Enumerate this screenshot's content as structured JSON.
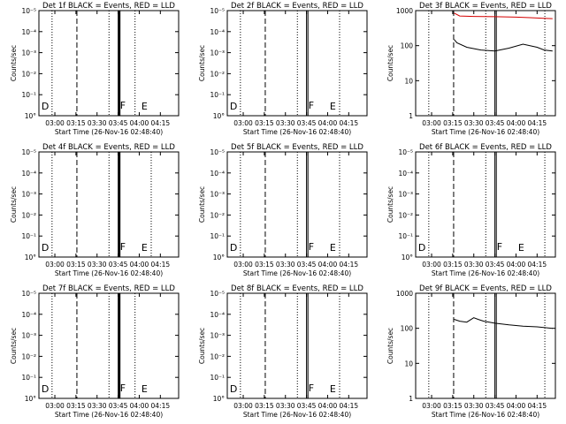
{
  "figure": {
    "background": "#ffffff",
    "axis_color": "#000000",
    "lld_color": "#d40000",
    "events_color": "#000000"
  },
  "chart_data": [
    {
      "type": "line",
      "title": "Det 1f BLACK = Events, RED = LLD",
      "ylabel": "Counts/sec",
      "xlabel": "Start Time (26-Nov-16 02:48:40)",
      "xlim": [
        "02:48:40",
        "04:28:00"
      ],
      "ylim": [
        1,
        1000
      ],
      "log_y": true,
      "yticklabels": [
        "10°",
        "10⁻¹",
        "10⁻²",
        "10⁻³",
        "10⁻⁴",
        "10⁻⁵"
      ],
      "xticklabels": [
        "03:00",
        "03:15",
        "03:30",
        "03:45",
        "04:00",
        "04:15"
      ],
      "dotted_lines": [
        "02:58:00",
        "03:38:30",
        "03:57:00"
      ],
      "dashed_lines": [
        "03:15:40"
      ],
      "solid_lines": [
        "03:45:40"
      ],
      "solid_lines_bold": true,
      "markers": [
        {
          "label": "D",
          "x": "02:50:30",
          "y": 1.5
        },
        {
          "label": "F",
          "x": "03:46:20",
          "y": 1.6
        },
        {
          "label": "E",
          "x": "04:01:30",
          "y": 1.5
        }
      ],
      "series": []
    },
    {
      "type": "line",
      "title": "Det 2f BLACK = Events, RED = LLD",
      "ylabel": "Counts/sec",
      "xlabel": "Start Time (26-Nov-16 02:48:40)",
      "xlim": [
        "02:48:40",
        "04:28:00"
      ],
      "ylim": [
        1,
        1000
      ],
      "log_y": true,
      "yticklabels": [
        "10°",
        "10⁻¹",
        "10⁻²",
        "10⁻³",
        "10⁻⁴",
        "10⁻⁵"
      ],
      "xticklabels": [
        "03:00",
        "03:15",
        "03:30",
        "03:45",
        "04:00",
        "04:15"
      ],
      "dotted_lines": [
        "02:58:00",
        "03:38:30",
        "04:08:30"
      ],
      "dashed_lines": [
        "03:15:40"
      ],
      "solid_lines": [
        "03:45:00",
        "03:46:00"
      ],
      "markers": [
        {
          "label": "D",
          "x": "02:50:30",
          "y": 1.5
        },
        {
          "label": "F",
          "x": "03:46:20",
          "y": 1.6
        },
        {
          "label": "E",
          "x": "04:01:30",
          "y": 1.5
        }
      ],
      "series": []
    },
    {
      "type": "line",
      "title": "Det 3f BLACK = Events, RED = LLD",
      "ylabel": "Counts/sec",
      "xlabel": "Start Time (26-Nov-16 02:48:40)",
      "xlim": [
        "02:48:40",
        "04:28:00"
      ],
      "ylim": [
        1,
        1000
      ],
      "log_y": true,
      "yticklabels": [
        "1",
        "10",
        "100",
        "1000"
      ],
      "xticklabels": [
        "03:00",
        "03:15",
        "03:30",
        "03:45",
        "04:00",
        "04:15"
      ],
      "dotted_lines": [
        "02:58:00",
        "03:38:30",
        "04:20:30"
      ],
      "dashed_lines": [
        "03:15:40"
      ],
      "solid_lines": [
        "03:45:00",
        "03:46:00"
      ],
      "markers": [],
      "series": [
        {
          "color": "red",
          "points": [
            [
              "03:16:00",
              850
            ],
            [
              "03:20:00",
              700
            ],
            [
              "03:30:00",
              680
            ],
            [
              "03:45:00",
              670
            ],
            [
              "04:00:00",
              650
            ],
            [
              "04:10:00",
              630
            ],
            [
              "04:20:00",
              600
            ],
            [
              "04:26:00",
              590
            ]
          ]
        },
        {
          "color": "black",
          "points": [
            [
              "03:16:00",
              150
            ],
            [
              "03:18:00",
              120
            ],
            [
              "03:25:00",
              90
            ],
            [
              "03:35:00",
              75
            ],
            [
              "03:45:00",
              70
            ],
            [
              "03:55:00",
              85
            ],
            [
              "04:05:00",
              110
            ],
            [
              "04:15:00",
              90
            ],
            [
              "04:20:00",
              75
            ],
            [
              "04:26:00",
              70
            ]
          ]
        }
      ]
    },
    {
      "type": "line",
      "title": "Det 4f BLACK = Events, RED = LLD",
      "ylabel": "Counts/sec",
      "xlabel": "Start Time (26-Nov-16 02:48:40)",
      "xlim": [
        "02:48:40",
        "04:28:00"
      ],
      "ylim": [
        1,
        1000
      ],
      "log_y": true,
      "yticklabels": [
        "10°",
        "10⁻¹",
        "10⁻²",
        "10⁻³",
        "10⁻⁴",
        "10⁻⁵"
      ],
      "xticklabels": [
        "03:00",
        "03:15",
        "03:30",
        "03:45",
        "04:00",
        "04:15"
      ],
      "dotted_lines": [
        "02:58:00",
        "03:38:30",
        "04:08:30"
      ],
      "dashed_lines": [
        "03:15:40"
      ],
      "solid_lines": [
        "03:45:40"
      ],
      "solid_lines_bold": true,
      "markers": [
        {
          "label": "D",
          "x": "02:50:30",
          "y": 1.5
        },
        {
          "label": "F",
          "x": "03:46:20",
          "y": 1.6
        },
        {
          "label": "E",
          "x": "04:01:30",
          "y": 1.5
        }
      ],
      "series": []
    },
    {
      "type": "line",
      "title": "Det 5f BLACK = Events, RED = LLD",
      "ylabel": "Counts/sec",
      "xlabel": "Start Time (26-Nov-16 02:48:40)",
      "xlim": [
        "02:48:40",
        "04:28:00"
      ],
      "ylim": [
        1,
        1000
      ],
      "log_y": true,
      "yticklabels": [
        "10°",
        "10⁻¹",
        "10⁻²",
        "10⁻³",
        "10⁻⁴",
        "10⁻⁵"
      ],
      "xticklabels": [
        "03:00",
        "03:15",
        "03:30",
        "03:45",
        "04:00",
        "04:15"
      ],
      "dotted_lines": [
        "02:58:00",
        "03:38:30",
        "04:08:30"
      ],
      "dashed_lines": [
        "03:15:40"
      ],
      "solid_lines": [
        "03:45:00",
        "03:46:00"
      ],
      "markers": [
        {
          "label": "D",
          "x": "02:50:30",
          "y": 1.5
        },
        {
          "label": "F",
          "x": "03:46:20",
          "y": 1.6
        },
        {
          "label": "E",
          "x": "04:01:30",
          "y": 1.5
        }
      ],
      "series": []
    },
    {
      "type": "line",
      "title": "Det 6f BLACK = Events, RED = LLD",
      "ylabel": "Counts/sec",
      "xlabel": "Start Time (26-Nov-16 02:48:40)",
      "xlim": [
        "02:48:40",
        "04:28:00"
      ],
      "ylim": [
        1,
        1000
      ],
      "log_y": true,
      "yticklabels": [
        "10°",
        "10⁻¹",
        "10⁻²",
        "10⁻³",
        "10⁻⁴",
        "10⁻⁵"
      ],
      "xticklabels": [
        "03:00",
        "03:15",
        "03:30",
        "03:45",
        "04:00",
        "04:15"
      ],
      "dotted_lines": [
        "02:58:00",
        "03:38:30",
        "04:20:30"
      ],
      "dashed_lines": [
        "03:15:40"
      ],
      "solid_lines": [
        "03:45:00",
        "03:46:00"
      ],
      "markers": [
        {
          "label": "D",
          "x": "02:50:30",
          "y": 1.5
        },
        {
          "label": "F",
          "x": "03:46:20",
          "y": 1.6
        },
        {
          "label": "E",
          "x": "04:01:30",
          "y": 1.5
        }
      ],
      "series": []
    },
    {
      "type": "line",
      "title": "Det 7f BLACK = Events, RED = LLD",
      "ylabel": "Counts/sec",
      "xlabel": "Start Time (26-Nov-16 02:48:40)",
      "xlim": [
        "02:48:40",
        "04:28:00"
      ],
      "ylim": [
        1,
        1000
      ],
      "log_y": true,
      "yticklabels": [
        "10°",
        "10⁻¹",
        "10⁻²",
        "10⁻³",
        "10⁻⁴",
        "10⁻⁵"
      ],
      "xticklabels": [
        "03:00",
        "03:15",
        "03:30",
        "03:45",
        "04:00",
        "04:15"
      ],
      "dotted_lines": [
        "02:58:00",
        "03:38:30",
        "03:57:00"
      ],
      "dashed_lines": [
        "03:15:40"
      ],
      "solid_lines": [
        "03:45:40"
      ],
      "solid_lines_bold": true,
      "markers": [
        {
          "label": "D",
          "x": "02:50:30",
          "y": 1.5
        },
        {
          "label": "F",
          "x": "03:46:20",
          "y": 1.6
        },
        {
          "label": "E",
          "x": "04:01:30",
          "y": 1.5
        }
      ],
      "series": []
    },
    {
      "type": "line",
      "title": "Det 8f BLACK = Events, RED = LLD",
      "ylabel": "Counts/sec",
      "xlabel": "Start Time (26-Nov-16 02:48:40)",
      "xlim": [
        "02:48:40",
        "04:28:00"
      ],
      "ylim": [
        1,
        1000
      ],
      "log_y": true,
      "yticklabels": [
        "10°",
        "10⁻¹",
        "10⁻²",
        "10⁻³",
        "10⁻⁴",
        "10⁻⁵"
      ],
      "xticklabels": [
        "03:00",
        "03:15",
        "03:30",
        "03:45",
        "04:00",
        "04:15"
      ],
      "dotted_lines": [
        "02:58:00",
        "03:38:30",
        "04:08:30"
      ],
      "dashed_lines": [
        "03:15:40"
      ],
      "solid_lines": [
        "03:45:00",
        "03:46:00"
      ],
      "markers": [
        {
          "label": "D",
          "x": "02:50:30",
          "y": 1.5
        },
        {
          "label": "F",
          "x": "03:46:20",
          "y": 1.6
        },
        {
          "label": "E",
          "x": "04:01:30",
          "y": 1.5
        }
      ],
      "series": []
    },
    {
      "type": "line",
      "title": "Det 9f BLACK = Events, RED = LLD",
      "ylabel": "Counts/sec",
      "xlabel": "Start Time (26-Nov-16 02:48:40)",
      "xlim": [
        "02:48:40",
        "04:28:00"
      ],
      "ylim": [
        1,
        1000
      ],
      "log_y": true,
      "yticklabels": [
        "1",
        "10",
        "100",
        "1000"
      ],
      "xticklabels": [
        "03:00",
        "03:15",
        "03:30",
        "03:45",
        "04:00",
        "04:15"
      ],
      "dotted_lines": [
        "02:58:00",
        "03:38:30",
        "04:20:30"
      ],
      "dashed_lines": [
        "03:15:40"
      ],
      "solid_lines": [
        "03:45:00",
        "03:46:00"
      ],
      "markers": [],
      "series": [
        {
          "color": "black",
          "points": [
            [
              "03:16:00",
              180
            ],
            [
              "03:20:00",
              160
            ],
            [
              "03:25:00",
              150
            ],
            [
              "03:30:00",
              200
            ],
            [
              "03:33:00",
              180
            ],
            [
              "03:37:00",
              160
            ],
            [
              "03:45:00",
              140
            ],
            [
              "03:55:00",
              125
            ],
            [
              "04:05:00",
              115
            ],
            [
              "04:15:00",
              110
            ],
            [
              "04:26:00",
              100
            ]
          ]
        }
      ]
    }
  ]
}
